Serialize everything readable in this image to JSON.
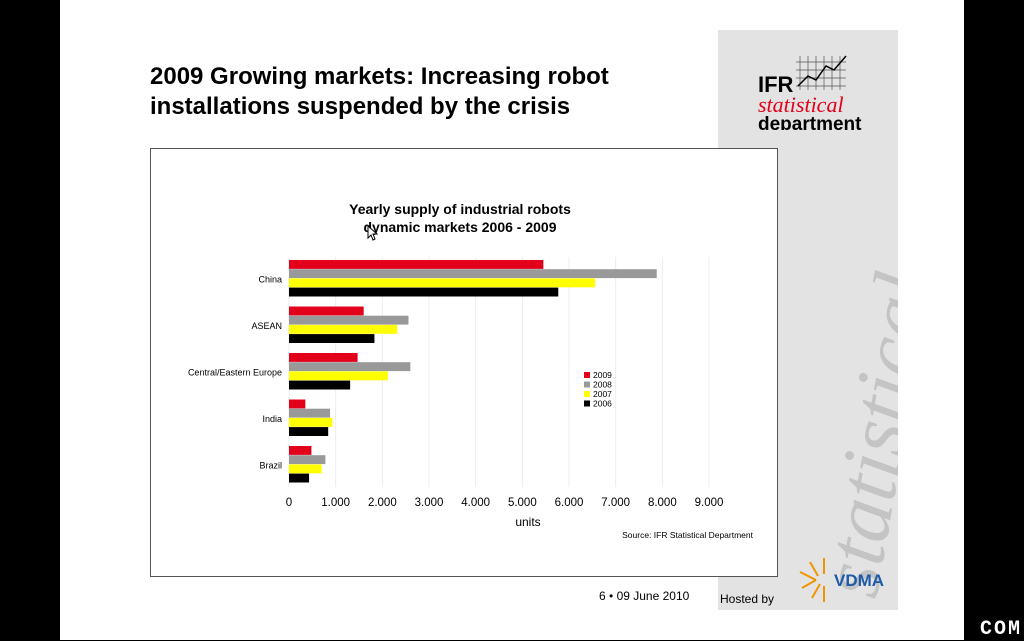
{
  "slide": {
    "title_line1": "2009 Growing markets: Increasing robot",
    "title_line2": "installations suspended by the crisis",
    "page_number": "6",
    "separator": "•",
    "date": "09 June 2010",
    "hosted_by": "Hosted by",
    "edge_text": "COM"
  },
  "logo": {
    "ifr": "IFR",
    "statistical": "statistical",
    "department": "department",
    "watermark": "statistical",
    "vdma": "VDMA"
  },
  "colors": {
    "y2009": "#e2001a",
    "y2008": "#999999",
    "y2007": "#ffff00",
    "y2006": "#000000"
  },
  "chart_data": {
    "type": "bar",
    "orientation": "horizontal",
    "title_line1": "Yearly supply of industrial robots",
    "title_line2": "dynamic markets 2006 - 2009",
    "categories": [
      "China",
      "ASEAN",
      "Central/Eastern Europe",
      "India",
      "Brazil"
    ],
    "series": [
      {
        "name": "2009",
        "values": [
          5450,
          1600,
          1470,
          350,
          480
        ]
      },
      {
        "name": "2008",
        "values": [
          7880,
          2560,
          2600,
          880,
          780
        ]
      },
      {
        "name": "2007",
        "values": [
          6560,
          2320,
          2120,
          930,
          700
        ]
      },
      {
        "name": "2006",
        "values": [
          5770,
          1830,
          1310,
          840,
          430
        ]
      }
    ],
    "xlabel": "units",
    "xlim": [
      0,
      9000
    ],
    "xticks": [
      "0",
      "1.000",
      "2.000",
      "3.000",
      "4.000",
      "5.000",
      "6.000",
      "7.000",
      "8.000",
      "9.000"
    ],
    "legend_position": "right",
    "source": "Source: IFR Statistical Department"
  }
}
